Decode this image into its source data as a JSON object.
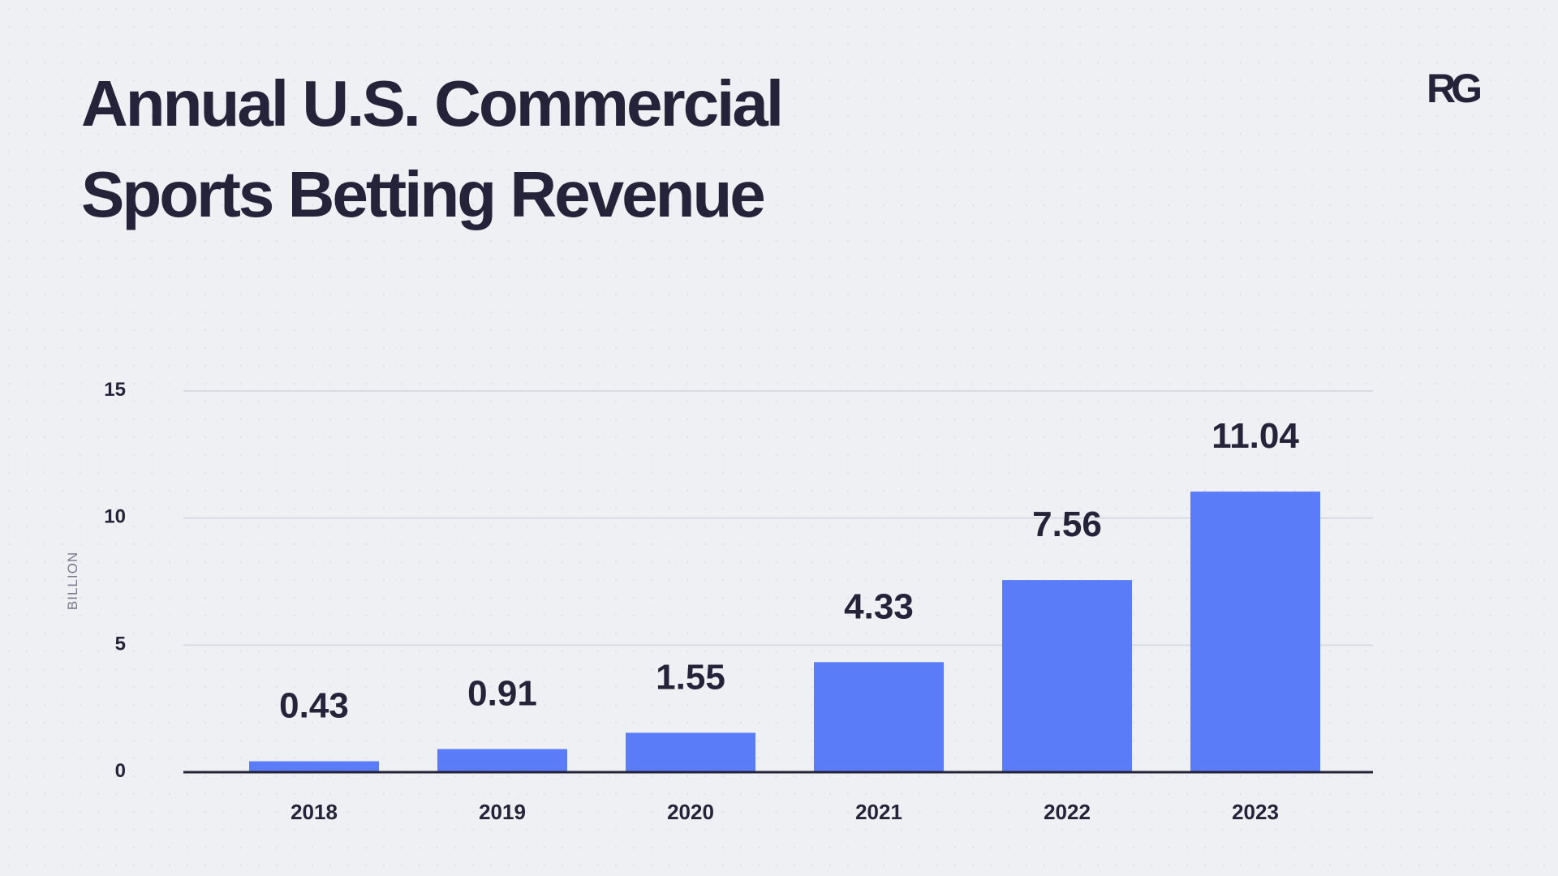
{
  "logo": {
    "text": "RG"
  },
  "chart_data": {
    "type": "bar",
    "title_lines": [
      "Annual U.S. Commercial",
      "Sports Betting Revenue"
    ],
    "categories": [
      "2018",
      "2019",
      "2020",
      "2021",
      "2022",
      "2023"
    ],
    "values": [
      0.43,
      0.91,
      1.55,
      4.33,
      7.56,
      11.04
    ],
    "value_labels": [
      "0.43",
      "0.91",
      "1.55",
      "4.33",
      "7.56",
      "11.04"
    ],
    "xlabel": "",
    "ylabel": "BILLION",
    "ylim": [
      0,
      15
    ],
    "yticks": [
      0,
      5,
      10,
      15
    ],
    "grid": true,
    "bar_color": "#5a7cf8",
    "text_color": "#24233a",
    "grid_color": "#d9dae2",
    "axis_color": "#24233a"
  }
}
